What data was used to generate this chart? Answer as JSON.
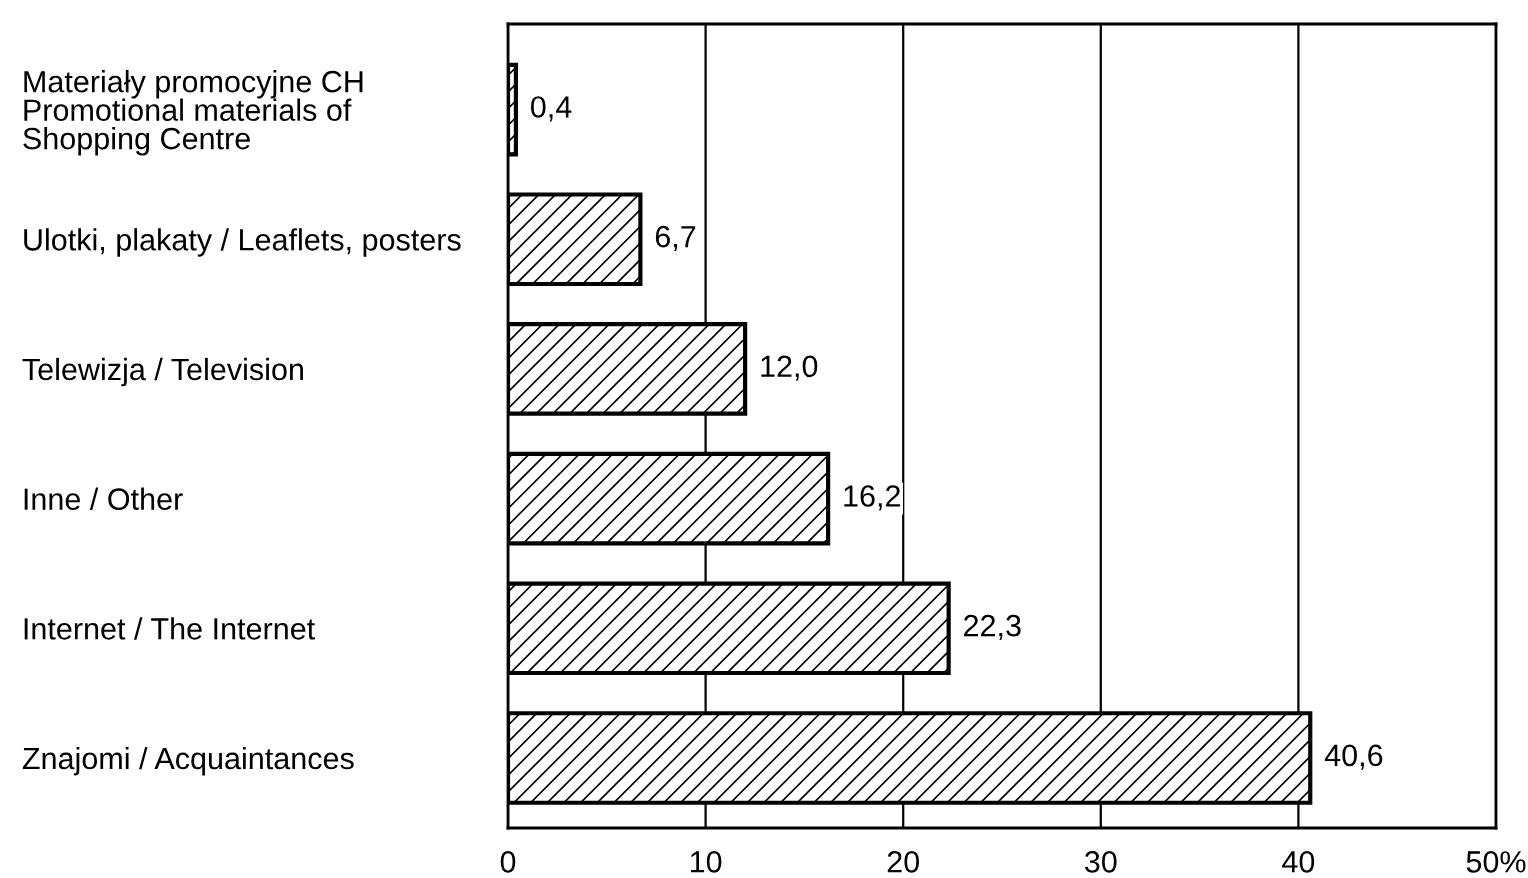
{
  "chart_data": {
    "type": "bar",
    "orientation": "horizontal",
    "categories": [
      "Materiały promocyjne CH\nPromotional materials of\nShopping Centre",
      "Ulotki, plakaty / Leaflets, posters",
      "Telewizja / Television",
      "Inne / Other",
      "Internet / The Internet",
      "Znajomi / Acquaintances"
    ],
    "values": [
      0.4,
      6.7,
      12.0,
      16.2,
      22.3,
      40.6
    ],
    "value_labels": [
      "0,4",
      "6,7",
      "12,0",
      "16,2",
      "22,3",
      "40,6"
    ],
    "color": "#000000",
    "xlim": [
      0,
      50
    ],
    "xticks": [
      0,
      10,
      20,
      30,
      40,
      {
        "value": 50,
        "label": "50%"
      }
    ],
    "grid": "x"
  }
}
